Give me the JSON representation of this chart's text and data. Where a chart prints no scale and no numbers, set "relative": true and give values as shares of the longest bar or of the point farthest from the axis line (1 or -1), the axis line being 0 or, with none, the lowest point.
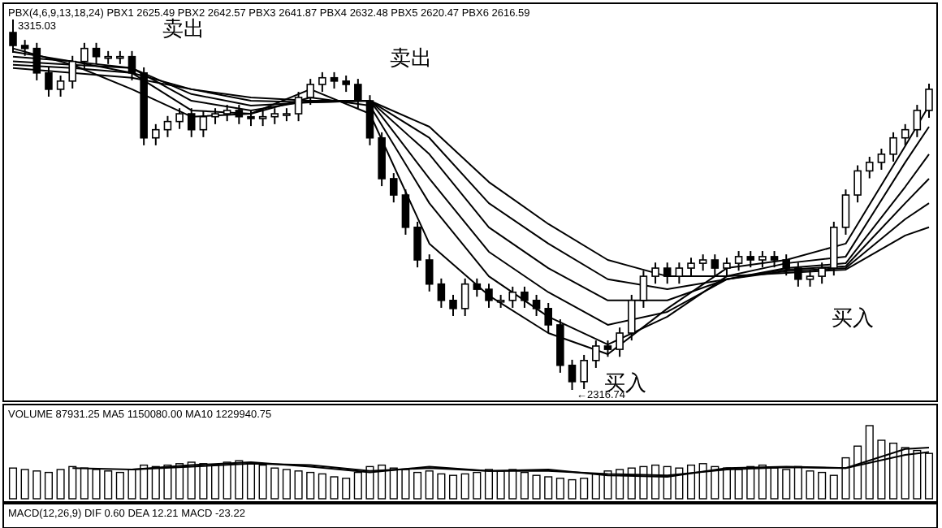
{
  "chart_data": [
    {
      "type": "candlestick",
      "categories": [
        null,
        null,
        null,
        null,
        null,
        null,
        null,
        null,
        null,
        null,
        null,
        null,
        null,
        null,
        null,
        null,
        null,
        null,
        null,
        null,
        null,
        null,
        null,
        null,
        null,
        null,
        null,
        null,
        null,
        null,
        null,
        null,
        null,
        null,
        null,
        null,
        null,
        null,
        null,
        null,
        null,
        null,
        null,
        null,
        null,
        null,
        null,
        null,
        null,
        null,
        null,
        null,
        null,
        null,
        null,
        null,
        null,
        null,
        null,
        null,
        null,
        null,
        null,
        null,
        null,
        null,
        null,
        null,
        null,
        null,
        null,
        null,
        null,
        null,
        null,
        null,
        null,
        null
      ],
      "ohlc": [
        [
          3280,
          3315.03,
          3225,
          3245
        ],
        [
          3245,
          3260,
          3217,
          3237
        ],
        [
          3237,
          3252,
          3151,
          3171
        ],
        [
          3171,
          3186,
          3107,
          3127
        ],
        [
          3127,
          3164,
          3107,
          3149
        ],
        [
          3149,
          3217,
          3129,
          3202
        ],
        [
          3202,
          3252,
          3182,
          3237
        ],
        [
          3237,
          3252,
          3195,
          3215
        ],
        [
          3215,
          3230,
          3195,
          3215
        ],
        [
          3215,
          3230,
          3195,
          3215
        ],
        [
          3215,
          3230,
          3151,
          3171
        ],
        [
          3171,
          3186,
          2976,
          2996
        ],
        [
          2996,
          3033,
          2976,
          3018
        ],
        [
          3018,
          3055,
          2998,
          3040
        ],
        [
          3040,
          3076,
          3020,
          3061
        ],
        [
          3061,
          3076,
          2998,
          3018
        ],
        [
          3018,
          3068,
          2998,
          3053
        ],
        [
          3053,
          3076,
          3033,
          3061
        ],
        [
          3061,
          3085,
          3041,
          3070
        ],
        [
          3070,
          3085,
          3033,
          3053
        ],
        [
          3053,
          3068,
          3028,
          3048
        ],
        [
          3048,
          3068,
          3028,
          3053
        ],
        [
          3053,
          3076,
          3033,
          3061
        ],
        [
          3061,
          3076,
          3041,
          3061
        ],
        [
          3061,
          3120,
          3041,
          3105
        ],
        [
          3105,
          3155,
          3085,
          3140
        ],
        [
          3140,
          3173,
          3120,
          3158
        ],
        [
          3158,
          3173,
          3129,
          3149
        ],
        [
          3149,
          3164,
          3120,
          3140
        ],
        [
          3140,
          3155,
          3076,
          3096
        ],
        [
          3096,
          3111,
          2976,
          2996
        ],
        [
          2996,
          3011,
          2866,
          2886
        ],
        [
          2886,
          2901,
          2822,
          2842
        ],
        [
          2842,
          2857,
          2735,
          2755
        ],
        [
          2755,
          2770,
          2647,
          2667
        ],
        [
          2667,
          2682,
          2582,
          2602
        ],
        [
          2602,
          2617,
          2538,
          2558
        ],
        [
          2558,
          2573,
          2516,
          2536
        ],
        [
          2536,
          2617,
          2516,
          2602
        ],
        [
          2602,
          2617,
          2568,
          2588
        ],
        [
          2588,
          2603,
          2538,
          2558
        ],
        [
          2558,
          2573,
          2538,
          2558
        ],
        [
          2558,
          2595,
          2538,
          2580
        ],
        [
          2580,
          2595,
          2538,
          2558
        ],
        [
          2558,
          2573,
          2516,
          2536
        ],
        [
          2536,
          2551,
          2472,
          2492
        ],
        [
          2492,
          2507,
          2363,
          2383
        ],
        [
          2383,
          2398,
          2316.74,
          2339
        ],
        [
          2339,
          2411,
          2319,
          2396
        ],
        [
          2396,
          2450,
          2376,
          2435
        ],
        [
          2435,
          2450,
          2406,
          2426
        ],
        [
          2426,
          2485,
          2406,
          2470
        ],
        [
          2470,
          2573,
          2450,
          2558
        ],
        [
          2558,
          2638,
          2538,
          2623
        ],
        [
          2623,
          2660,
          2603,
          2645
        ],
        [
          2645,
          2660,
          2603,
          2623
        ],
        [
          2623,
          2660,
          2603,
          2645
        ],
        [
          2645,
          2673,
          2625,
          2658
        ],
        [
          2658,
          2682,
          2638,
          2667
        ],
        [
          2667,
          2682,
          2625,
          2645
        ],
        [
          2645,
          2673,
          2625,
          2658
        ],
        [
          2658,
          2691,
          2638,
          2676
        ],
        [
          2676,
          2691,
          2647,
          2667
        ],
        [
          2667,
          2691,
          2647,
          2676
        ],
        [
          2676,
          2691,
          2647,
          2667
        ],
        [
          2667,
          2682,
          2625,
          2645
        ],
        [
          2645,
          2660,
          2595,
          2615
        ],
        [
          2615,
          2638,
          2595,
          2623
        ],
        [
          2623,
          2660,
          2603,
          2645
        ],
        [
          2645,
          2770,
          2625,
          2755
        ],
        [
          2755,
          2857,
          2735,
          2842
        ],
        [
          2842,
          2922,
          2822,
          2907
        ],
        [
          2907,
          2945,
          2887,
          2930
        ],
        [
          2930,
          2967,
          2910,
          2952
        ],
        [
          2952,
          3011,
          2932,
          2996
        ],
        [
          2996,
          3033,
          2976,
          3018
        ],
        [
          3018,
          3085,
          2998,
          3070
        ],
        [
          3070,
          3142,
          3050,
          3127
        ]
      ],
      "series": [
        {
          "type": "line",
          "color": "#000000",
          "values": [
            3237,
            null,
            null,
            null,
            null,
            3193,
            null,
            null,
            null,
            null,
            3127,
            null,
            null,
            null,
            null,
            3053,
            null,
            null,
            null,
            null,
            3061,
            null,
            null,
            null,
            null,
            3127,
            null,
            null,
            null,
            null,
            3061,
            null,
            null,
            null,
            null,
            2711,
            null,
            null,
            null,
            null,
            2571,
            null,
            null,
            null,
            null,
            2470,
            null,
            null,
            null,
            null,
            2413,
            null,
            null,
            null,
            null,
            2536,
            null,
            null,
            null,
            null,
            2645,
            null,
            null,
            null,
            null,
            2667,
            null,
            null,
            null,
            null,
            2711,
            null,
            null,
            null,
            null,
            2974,
            null,
            3083
          ]
        },
        {
          "type": "line",
          "color": "#000000",
          "values": [
            3228,
            null,
            null,
            null,
            null,
            3202,
            null,
            null,
            null,
            null,
            3171,
            null,
            null,
            null,
            null,
            3070,
            null,
            null,
            null,
            null,
            3061,
            null,
            null,
            null,
            null,
            3105,
            null,
            null,
            null,
            null,
            3083,
            null,
            null,
            null,
            null,
            2820,
            null,
            null,
            null,
            null,
            2623,
            null,
            null,
            null,
            null,
            2514,
            null,
            null,
            null,
            null,
            2439,
            null,
            null,
            null,
            null,
            2514,
            null,
            null,
            null,
            null,
            2623,
            null,
            null,
            null,
            null,
            2658,
            null,
            null,
            null,
            null,
            2676,
            null,
            null,
            null,
            null,
            2930,
            null,
            3026
          ]
        },
        {
          "type": "line",
          "color": "#000000",
          "values": [
            3215,
            null,
            null,
            null,
            null,
            3202,
            null,
            null,
            null,
            null,
            3184,
            null,
            null,
            null,
            null,
            3096,
            null,
            null,
            null,
            null,
            3070,
            null,
            null,
            null,
            null,
            3096,
            null,
            null,
            null,
            null,
            3096,
            null,
            null,
            null,
            null,
            2886,
            null,
            null,
            null,
            null,
            2689,
            null,
            null,
            null,
            null,
            2580,
            null,
            null,
            null,
            null,
            2492,
            null,
            null,
            null,
            null,
            2527,
            null,
            null,
            null,
            null,
            2615,
            null,
            null,
            null,
            null,
            2645,
            null,
            null,
            null,
            null,
            2658,
            null,
            null,
            null,
            null,
            2864,
            null,
            2952
          ]
        },
        {
          "type": "line",
          "color": "#000000",
          "values": [
            3202,
            null,
            null,
            null,
            null,
            3193,
            null,
            null,
            null,
            null,
            3184,
            null,
            null,
            null,
            null,
            3114,
            null,
            null,
            null,
            null,
            3083,
            null,
            null,
            null,
            null,
            3092,
            null,
            null,
            null,
            null,
            3096,
            null,
            null,
            null,
            null,
            2952,
            null,
            null,
            null,
            null,
            2755,
            null,
            null,
            null,
            null,
            2645,
            null,
            null,
            null,
            null,
            2558,
            null,
            null,
            null,
            null,
            2558,
            null,
            null,
            null,
            null,
            2615,
            null,
            null,
            null,
            null,
            2641,
            null,
            null,
            null,
            null,
            2650,
            null,
            null,
            null,
            null,
            2820,
            null,
            2886
          ]
        },
        {
          "type": "line",
          "color": "#000000",
          "values": [
            3193,
            null,
            null,
            null,
            null,
            3184,
            null,
            null,
            null,
            null,
            3171,
            null,
            null,
            null,
            null,
            3127,
            null,
            null,
            null,
            null,
            3096,
            null,
            null,
            null,
            null,
            3092,
            null,
            null,
            null,
            null,
            3096,
            null,
            null,
            null,
            null,
            2996,
            null,
            null,
            null,
            null,
            2820,
            null,
            null,
            null,
            null,
            2711,
            null,
            null,
            null,
            null,
            2615,
            null,
            null,
            null,
            null,
            2588,
            null,
            null,
            null,
            null,
            2615,
            null,
            null,
            null,
            null,
            2637,
            null,
            null,
            null,
            null,
            2645,
            null,
            null,
            null,
            null,
            2777,
            null,
            2820
          ]
        },
        {
          "type": "line",
          "color": "#000000",
          "values": [
            3184,
            null,
            null,
            null,
            null,
            3171,
            null,
            null,
            null,
            null,
            3158,
            null,
            null,
            null,
            null,
            3127,
            null,
            null,
            null,
            null,
            3105,
            null,
            null,
            null,
            null,
            3096,
            null,
            null,
            null,
            null,
            3096,
            null,
            null,
            null,
            null,
            3026,
            null,
            null,
            null,
            null,
            2877,
            null,
            null,
            null,
            null,
            2764,
            null,
            null,
            null,
            null,
            2667,
            null,
            null,
            null,
            null,
            2623,
            null,
            null,
            null,
            null,
            2623,
            null,
            null,
            null,
            null,
            2632,
            null,
            null,
            null,
            null,
            2641,
            null,
            null,
            null,
            null,
            2733,
            null,
            2755
          ]
        }
      ],
      "annotations": [
        "PBX(4,6,9,13,18,24) PBX1 2625.49 PBX2 2642.57 PBX3 2641.87 PBX4 2632.48 PBX5 2620.47 PBX6 2616.59",
        "3315.03",
        "←2316.74",
        "卖出",
        "卖出",
        "买入",
        "买入"
      ]
    },
    {
      "type": "bar",
      "relative": true,
      "categories": [
        null,
        null,
        null,
        null,
        null,
        null,
        null,
        null,
        null,
        null,
        null,
        null,
        null,
        null,
        null,
        null,
        null,
        null,
        null,
        null,
        null,
        null,
        null,
        null,
        null,
        null,
        null,
        null,
        null,
        null,
        null,
        null,
        null,
        null,
        null,
        null,
        null,
        null,
        null,
        null,
        null,
        null,
        null,
        null,
        null,
        null,
        null,
        null,
        null,
        null,
        null,
        null,
        null,
        null,
        null,
        null,
        null,
        null,
        null,
        null,
        null,
        null,
        null,
        null,
        null,
        null,
        null,
        null,
        null,
        null,
        null,
        null,
        null,
        null,
        null,
        null,
        null,
        null
      ],
      "series": [
        {
          "type": "bar",
          "color": "#000000",
          "values": [
            0.42,
            0.4,
            0.38,
            0.36,
            0.4,
            0.44,
            0.42,
            0.4,
            0.38,
            0.36,
            0.4,
            0.46,
            0.44,
            0.46,
            0.48,
            0.5,
            0.48,
            0.46,
            0.5,
            0.52,
            0.48,
            0.46,
            0.42,
            0.4,
            0.38,
            0.36,
            0.34,
            0.3,
            0.28,
            0.36,
            0.44,
            0.46,
            0.42,
            0.4,
            0.36,
            0.38,
            0.34,
            0.32,
            0.34,
            0.36,
            0.4,
            0.38,
            0.4,
            0.36,
            0.32,
            0.3,
            0.28,
            0.26,
            0.28,
            0.34,
            0.38,
            0.4,
            0.42,
            0.44,
            0.46,
            0.44,
            0.42,
            0.46,
            0.48,
            0.44,
            0.42,
            0.4,
            0.44,
            0.46,
            0.42,
            0.4,
            0.44,
            0.38,
            0.36,
            0.32,
            0.56,
            0.72,
            1.0,
            0.8,
            0.76,
            0.7,
            0.66,
            0.62
          ]
        },
        {
          "type": "line",
          "color": "#000000",
          "values": [
            null,
            null,
            null,
            null,
            null,
            0.42,
            null,
            null,
            null,
            null,
            0.4,
            null,
            null,
            null,
            null,
            0.46,
            null,
            null,
            null,
            null,
            0.5,
            null,
            null,
            null,
            null,
            0.44,
            null,
            null,
            null,
            null,
            0.36,
            null,
            null,
            null,
            null,
            0.44,
            null,
            null,
            null,
            null,
            0.38,
            null,
            null,
            null,
            null,
            0.4,
            null,
            null,
            null,
            null,
            0.32,
            null,
            null,
            null,
            null,
            0.3,
            null,
            null,
            null,
            null,
            0.42,
            null,
            null,
            null,
            null,
            0.44,
            null,
            null,
            null,
            null,
            0.42,
            null,
            null,
            null,
            null,
            0.68,
            null,
            0.7
          ]
        },
        {
          "type": "line",
          "color": "#000000",
          "values": [
            null,
            null,
            null,
            null,
            null,
            null,
            null,
            null,
            null,
            null,
            0.4,
            null,
            null,
            null,
            null,
            0.44,
            null,
            null,
            null,
            null,
            0.48,
            null,
            null,
            null,
            null,
            0.46,
            null,
            null,
            null,
            null,
            0.38,
            null,
            null,
            null,
            null,
            0.42,
            null,
            null,
            null,
            null,
            0.38,
            null,
            null,
            null,
            null,
            0.38,
            null,
            null,
            null,
            null,
            0.34,
            null,
            null,
            null,
            null,
            0.32,
            null,
            null,
            null,
            null,
            0.4,
            null,
            null,
            null,
            null,
            0.43,
            null,
            null,
            null,
            null,
            0.42,
            null,
            null,
            null,
            null,
            0.6,
            null,
            0.64
          ]
        }
      ],
      "annotations": [
        "VOLUME 87931.25 MA5 1150080.00 MA10 1229940.75"
      ]
    },
    {
      "type": "other",
      "annotations": [
        "MACD(12,26,9) DIF 0.60 DEA 12.21 MACD -23.22"
      ]
    }
  ]
}
